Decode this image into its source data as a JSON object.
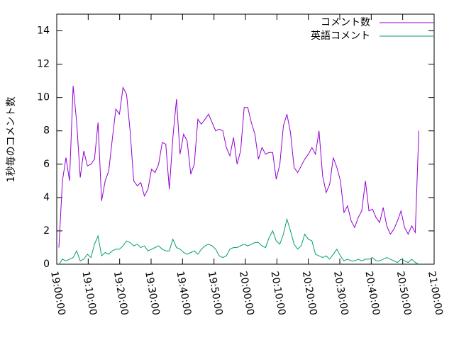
{
  "chart_data": {
    "type": "line",
    "y_label": "1秒毎のコメント数",
    "x": [
      "19:00:40",
      "19:01:48",
      "19:02:56",
      "19:04:04",
      "19:05:12",
      "19:06:20",
      "19:07:28",
      "19:08:36",
      "19:09:44",
      "19:10:52",
      "19:12:00",
      "19:13:08",
      "19:14:16",
      "19:15:24",
      "19:16:32",
      "19:17:40",
      "19:18:48",
      "19:19:56",
      "19:21:04",
      "19:22:12",
      "19:23:20",
      "19:24:28",
      "19:25:36",
      "19:26:44",
      "19:27:52",
      "19:29:00",
      "19:30:08",
      "19:31:16",
      "19:32:24",
      "19:33:32",
      "19:34:40",
      "19:35:48",
      "19:36:56",
      "19:38:04",
      "19:39:12",
      "19:40:20",
      "19:41:28",
      "19:42:36",
      "19:43:44",
      "19:44:52",
      "19:46:00",
      "19:47:08",
      "19:48:16",
      "19:49:24",
      "19:50:32",
      "19:51:40",
      "19:52:48",
      "19:53:56",
      "19:55:04",
      "19:56:12",
      "19:57:20",
      "19:58:28",
      "19:59:36",
      "20:00:44",
      "20:01:52",
      "20:03:00",
      "20:04:08",
      "20:05:16",
      "20:06:24",
      "20:07:32",
      "20:08:40",
      "20:09:48",
      "20:10:56",
      "20:12:04",
      "20:13:12",
      "20:14:20",
      "20:15:28",
      "20:16:36",
      "20:17:44",
      "20:18:52",
      "20:20:00",
      "20:21:08",
      "20:22:16",
      "20:23:24",
      "20:24:32",
      "20:25:40",
      "20:26:48",
      "20:27:56",
      "20:29:04",
      "20:30:12",
      "20:31:20",
      "20:32:28",
      "20:33:36",
      "20:34:44",
      "20:35:52",
      "20:37:00",
      "20:38:08",
      "20:39:16",
      "20:40:24",
      "20:41:32",
      "20:42:40",
      "20:43:48",
      "20:44:56",
      "20:46:04",
      "20:47:12",
      "20:48:20",
      "20:49:28",
      "20:50:36",
      "20:51:44",
      "20:52:52",
      "20:54:00",
      "20:55:08"
    ],
    "series": [
      {
        "name": "コメント数",
        "color": "#9400d3",
        "values": [
          1.0,
          5.0,
          6.4,
          5.0,
          10.7,
          8.5,
          5.2,
          6.8,
          5.9,
          6.0,
          6.3,
          8.5,
          3.8,
          5.0,
          5.6,
          7.5,
          9.3,
          9.0,
          10.6,
          10.2,
          8.0,
          5.0,
          4.7,
          4.9,
          4.1,
          4.5,
          5.7,
          5.5,
          6.0,
          7.3,
          7.2,
          4.5,
          7.6,
          9.9,
          6.6,
          7.8,
          7.4,
          5.4,
          6.0,
          8.7,
          8.4,
          8.7,
          9.0,
          8.5,
          8.0,
          8.1,
          8.0,
          7.0,
          6.5,
          7.6,
          6.0,
          6.8,
          9.4,
          9.4,
          8.5,
          7.8,
          6.3,
          7.0,
          6.6,
          6.7,
          6.7,
          5.1,
          6.0,
          8.3,
          9.0,
          7.9,
          5.8,
          5.5,
          5.9,
          6.3,
          6.6,
          7.0,
          6.6,
          8.0,
          5.3,
          4.3,
          4.8,
          6.4,
          5.8,
          5.0,
          3.1,
          3.5,
          2.6,
          2.2,
          2.8,
          3.2,
          5.0,
          3.2,
          3.3,
          2.8,
          2.5,
          3.4,
          2.3,
          1.8,
          2.1,
          2.6,
          3.2,
          2.2,
          1.8,
          2.3,
          1.9,
          8.0
        ]
      },
      {
        "name": "英語コメント",
        "color": "#009e73",
        "values": [
          0.0,
          0.3,
          0.2,
          0.3,
          0.4,
          0.8,
          0.2,
          0.3,
          0.6,
          0.4,
          1.2,
          1.7,
          0.5,
          0.7,
          0.6,
          0.8,
          0.9,
          0.9,
          1.1,
          1.4,
          1.3,
          1.1,
          1.2,
          1.0,
          1.1,
          0.8,
          0.9,
          1.0,
          1.1,
          0.9,
          0.8,
          0.8,
          1.5,
          1.0,
          0.9,
          0.7,
          0.6,
          0.7,
          0.8,
          0.6,
          0.9,
          1.1,
          1.2,
          1.1,
          0.9,
          0.5,
          0.4,
          0.5,
          0.9,
          1.0,
          1.0,
          1.1,
          1.2,
          1.1,
          1.2,
          1.3,
          1.3,
          1.1,
          1.0,
          1.6,
          2.0,
          1.4,
          1.2,
          1.8,
          2.7,
          2.0,
          1.2,
          0.9,
          1.1,
          1.8,
          1.5,
          1.4,
          0.6,
          0.5,
          0.4,
          0.5,
          0.3,
          0.6,
          0.9,
          0.5,
          0.2,
          0.3,
          0.2,
          0.2,
          0.3,
          0.2,
          0.3,
          0.3,
          0.4,
          0.2,
          0.2,
          0.3,
          0.4,
          0.3,
          0.2,
          0.1,
          0.3,
          0.2,
          0.1,
          0.3,
          0.1,
          0.0
        ]
      }
    ],
    "xlim": [
      "19:00:00",
      "21:00:00"
    ],
    "xticks": [
      "19:00:00",
      "19:10:00",
      "19:20:00",
      "19:30:00",
      "19:40:00",
      "19:50:00",
      "20:00:00",
      "20:10:00",
      "20:20:00",
      "20:30:00",
      "20:40:00",
      "20:50:00",
      "21:00:00"
    ],
    "ylim": [
      0,
      15
    ],
    "yticks": [
      0,
      2,
      4,
      6,
      8,
      10,
      12,
      14
    ],
    "legend": "top-right",
    "grid": false
  }
}
